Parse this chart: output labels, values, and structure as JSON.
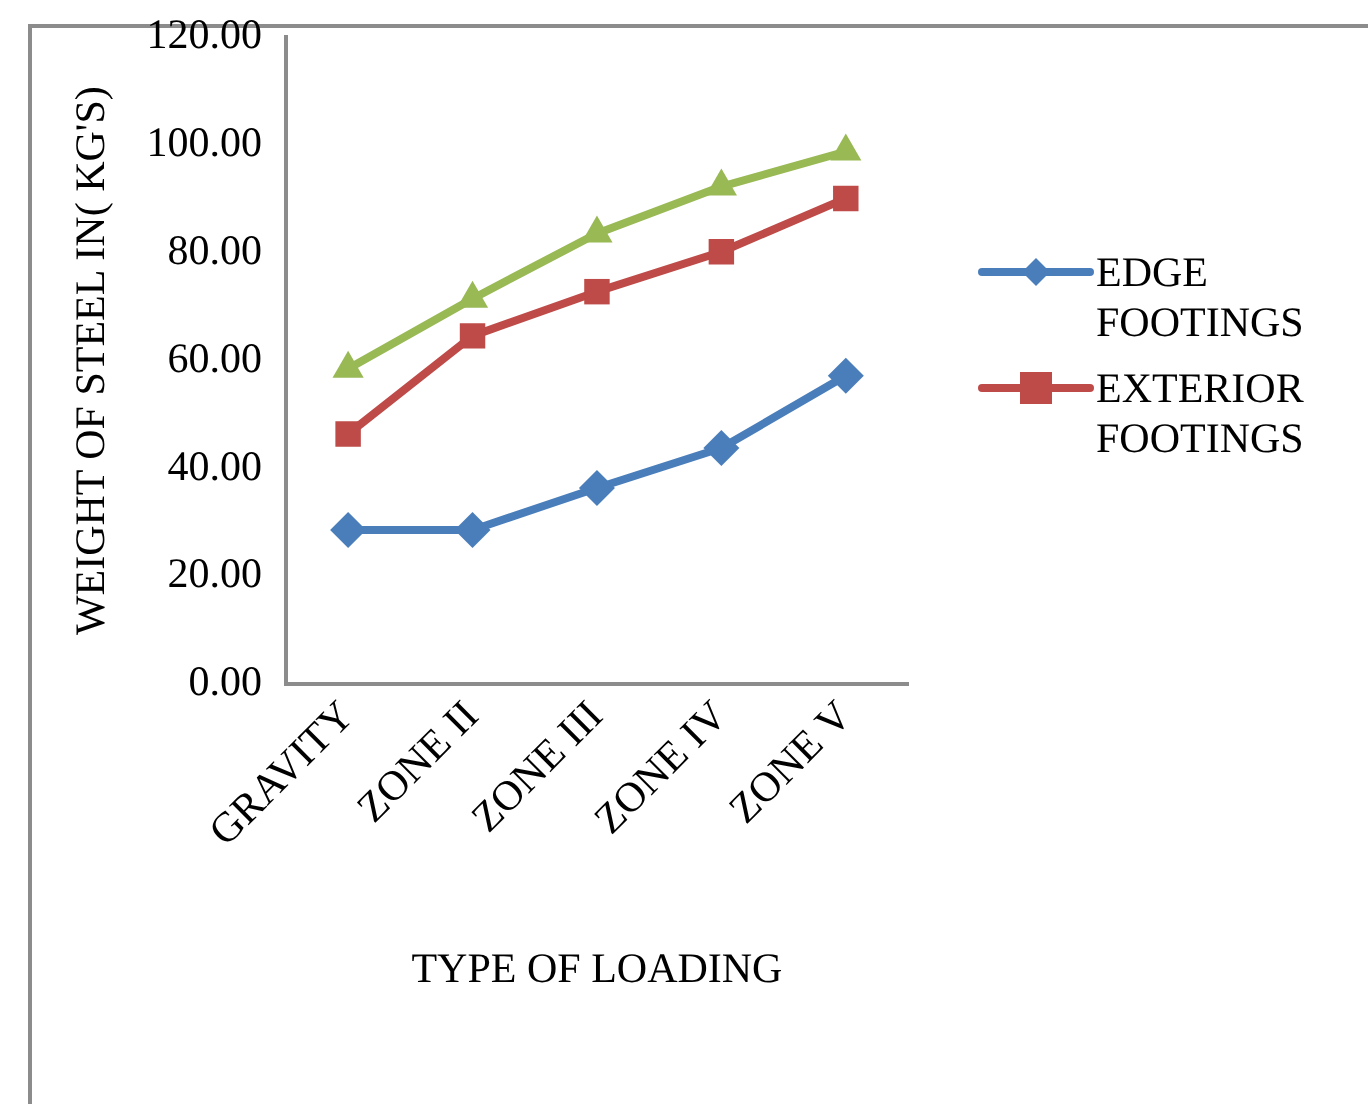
{
  "chart_data": {
    "type": "line",
    "xlabel": "TYPE OF LOADING",
    "ylabel": "WEIGHT OF STEEL IN( KG'S)",
    "categories": [
      "GRAVITY",
      "ZONE II",
      "ZONE III",
      "ZONE IV",
      "ZONE V"
    ],
    "series": [
      {
        "name": "EDGE FOOTINGS",
        "color": "#4a7ebb",
        "marker": "diamond",
        "values": [
          28.6,
          28.6,
          36.4,
          43.8,
          57.2
        ]
      },
      {
        "name": "EXTERIOR FOOTINGS",
        "color": "#be4b48",
        "marker": "square",
        "values": [
          46.4,
          64.6,
          72.8,
          80.2,
          90.1
        ]
      },
      {
        "color": "#98b954",
        "marker": "triangle",
        "values": [
          58.5,
          71.5,
          83.6,
          92.3,
          98.8
        ]
      }
    ],
    "ylim": [
      0,
      120
    ],
    "yticks": [
      {
        "value": 0,
        "label": "0.00"
      },
      {
        "value": 20,
        "label": "20.00"
      },
      {
        "value": 40,
        "label": "40.00"
      },
      {
        "value": 60,
        "label": "60.00"
      },
      {
        "value": 80,
        "label": "80.00"
      },
      {
        "value": 100,
        "label": "100.00"
      },
      {
        "value": 120,
        "label": "120.00"
      }
    ],
    "grid": false,
    "legend": "right"
  }
}
